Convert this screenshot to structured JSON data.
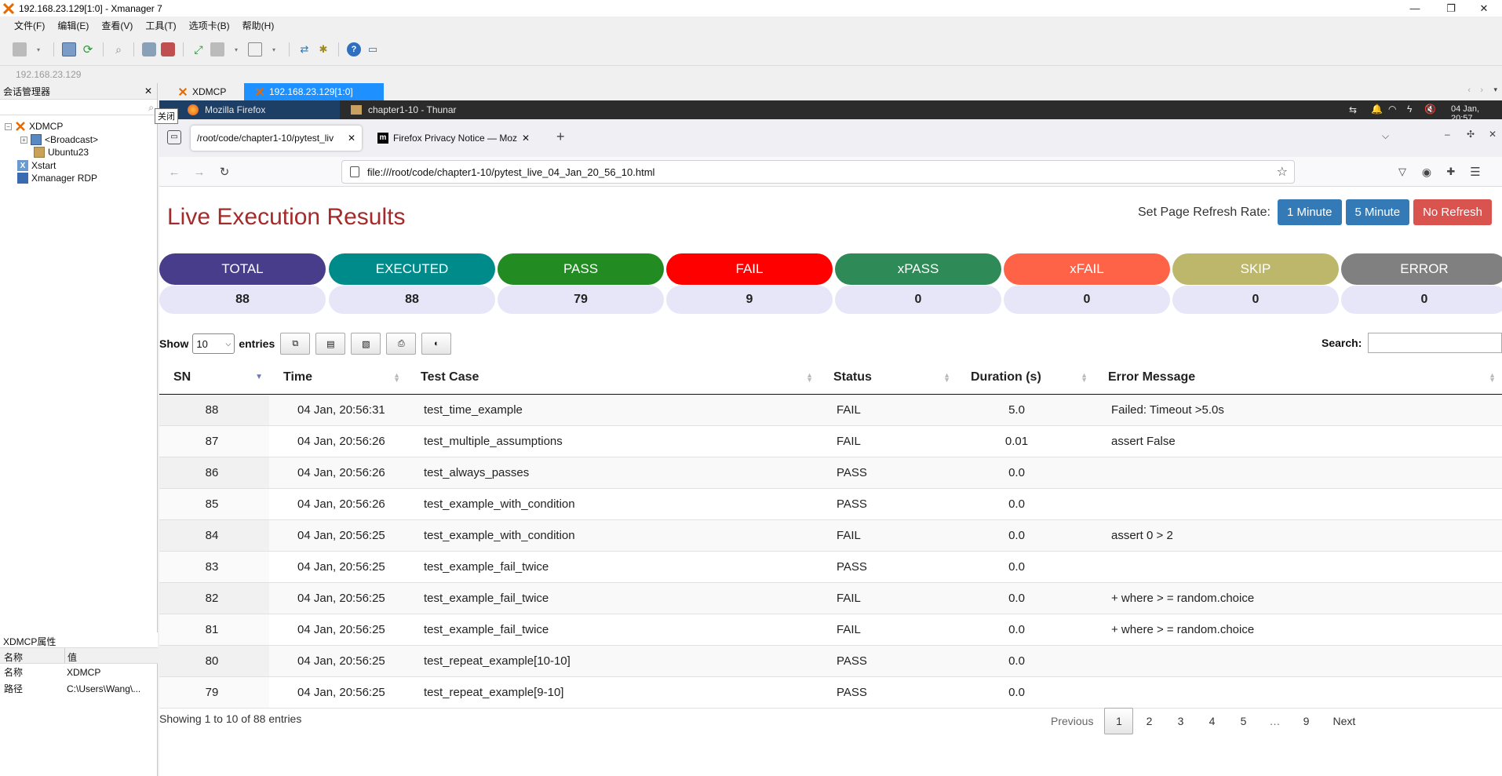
{
  "window": {
    "title": "192.168.23.129[1:0] - Xmanager 7",
    "minimize": "—",
    "maximize": "❐",
    "close": "✕"
  },
  "menu": [
    "文件(F)",
    "编辑(E)",
    "查看(V)",
    "工具(T)",
    "选项卡(B)",
    "帮助(H)"
  ],
  "address": {
    "text": "192.168.23.129"
  },
  "session_manager": {
    "title": "会话管理器",
    "close": "✕",
    "tooltip": "关闭",
    "tree": [
      {
        "label": "XDMCP"
      },
      {
        "label": "<Broadcast>"
      },
      {
        "label": "Ubuntu23"
      },
      {
        "label": "Xstart"
      },
      {
        "label": "Xmanager RDP"
      }
    ]
  },
  "properties": {
    "title": "XDMCP属性",
    "col_name": "名称",
    "col_value": "值",
    "rows": [
      {
        "name": "名称",
        "value": "XDMCP"
      },
      {
        "name": "路径",
        "value": "C:\\Users\\Wang\\..."
      }
    ]
  },
  "session_tabs": [
    {
      "label": "XDMCP"
    },
    {
      "label": "192.168.23.129[1:0]"
    }
  ],
  "xfce": {
    "tasks": [
      {
        "label": "Mozilla Firefox"
      },
      {
        "label": "chapter1-10 - Thunar"
      }
    ],
    "clock": "04 Jan, 20:57"
  },
  "firefox": {
    "tabs": [
      {
        "label": "/root/code/chapter1-10/pytest_liv"
      },
      {
        "label": "Firefox Privacy Notice — Mozi"
      }
    ],
    "new_tab": "+",
    "url": "file:///root/code/chapter1-10/pytest_live_04_Jan_20_56_10.html"
  },
  "page": {
    "title": "Live Execution Results",
    "refresh_label": "Set Page Refresh Rate:",
    "refresh_buttons": [
      {
        "label": "1 Minute",
        "color": "#337ab7"
      },
      {
        "label": "5 Minute",
        "color": "#337ab7"
      },
      {
        "label": "No Refresh",
        "color": "#d9534f"
      }
    ],
    "stats": [
      {
        "label": "TOTAL",
        "value": "88",
        "color": "#483d8b"
      },
      {
        "label": "EXECUTED",
        "value": "88",
        "color": "#008b8b"
      },
      {
        "label": "PASS",
        "value": "79",
        "color": "#228b22"
      },
      {
        "label": "FAIL",
        "value": "9",
        "color": "#ff0000"
      },
      {
        "label": "xPASS",
        "value": "0",
        "color": "#2e8b57"
      },
      {
        "label": "xFAIL",
        "value": "0",
        "color": "#ff6347"
      },
      {
        "label": "SKIP",
        "value": "0",
        "color": "#bdb76b"
      },
      {
        "label": "ERROR",
        "value": "0",
        "color": "#808080"
      }
    ],
    "show_label": "Show",
    "entries_label": "entries",
    "page_length": "10",
    "search_label": "Search:",
    "columns": [
      "SN",
      "Time",
      "Test Case",
      "Status",
      "Duration (s)",
      "Error Message"
    ],
    "rows": [
      {
        "sn": "88",
        "time": "04 Jan, 20:56:31",
        "test": "test_time_example",
        "status": "FAIL",
        "duration": "5.0",
        "error": "Failed: Timeout >5.0s"
      },
      {
        "sn": "87",
        "time": "04 Jan, 20:56:26",
        "test": "test_multiple_assumptions",
        "status": "FAIL",
        "duration": "0.01",
        "error": "assert False"
      },
      {
        "sn": "86",
        "time": "04 Jan, 20:56:26",
        "test": "test_always_passes",
        "status": "PASS",
        "duration": "0.0",
        "error": ""
      },
      {
        "sn": "85",
        "time": "04 Jan, 20:56:26",
        "test": "test_example_with_condition",
        "status": "PASS",
        "duration": "0.0",
        "error": ""
      },
      {
        "sn": "84",
        "time": "04 Jan, 20:56:25",
        "test": "test_example_with_condition",
        "status": "FAIL",
        "duration": "0.0",
        "error": "assert 0 > 2"
      },
      {
        "sn": "83",
        "time": "04 Jan, 20:56:25",
        "test": "test_example_fail_twice",
        "status": "PASS",
        "duration": "0.0",
        "error": ""
      },
      {
        "sn": "82",
        "time": "04 Jan, 20:56:25",
        "test": "test_example_fail_twice",
        "status": "FAIL",
        "duration": "0.0",
        "error": "+ where > = random.choice"
      },
      {
        "sn": "81",
        "time": "04 Jan, 20:56:25",
        "test": "test_example_fail_twice",
        "status": "FAIL",
        "duration": "0.0",
        "error": "+ where > = random.choice"
      },
      {
        "sn": "80",
        "time": "04 Jan, 20:56:25",
        "test": "test_repeat_example[10-10]",
        "status": "PASS",
        "duration": "0.0",
        "error": ""
      },
      {
        "sn": "79",
        "time": "04 Jan, 20:56:25",
        "test": "test_repeat_example[9-10]",
        "status": "PASS",
        "duration": "0.0",
        "error": ""
      }
    ],
    "info": "Showing 1 to 10 of 88 entries",
    "pagination": {
      "previous": "Previous",
      "pages": [
        "1",
        "2",
        "3",
        "4",
        "5",
        "…",
        "9"
      ],
      "next": "Next",
      "current": "1"
    }
  }
}
